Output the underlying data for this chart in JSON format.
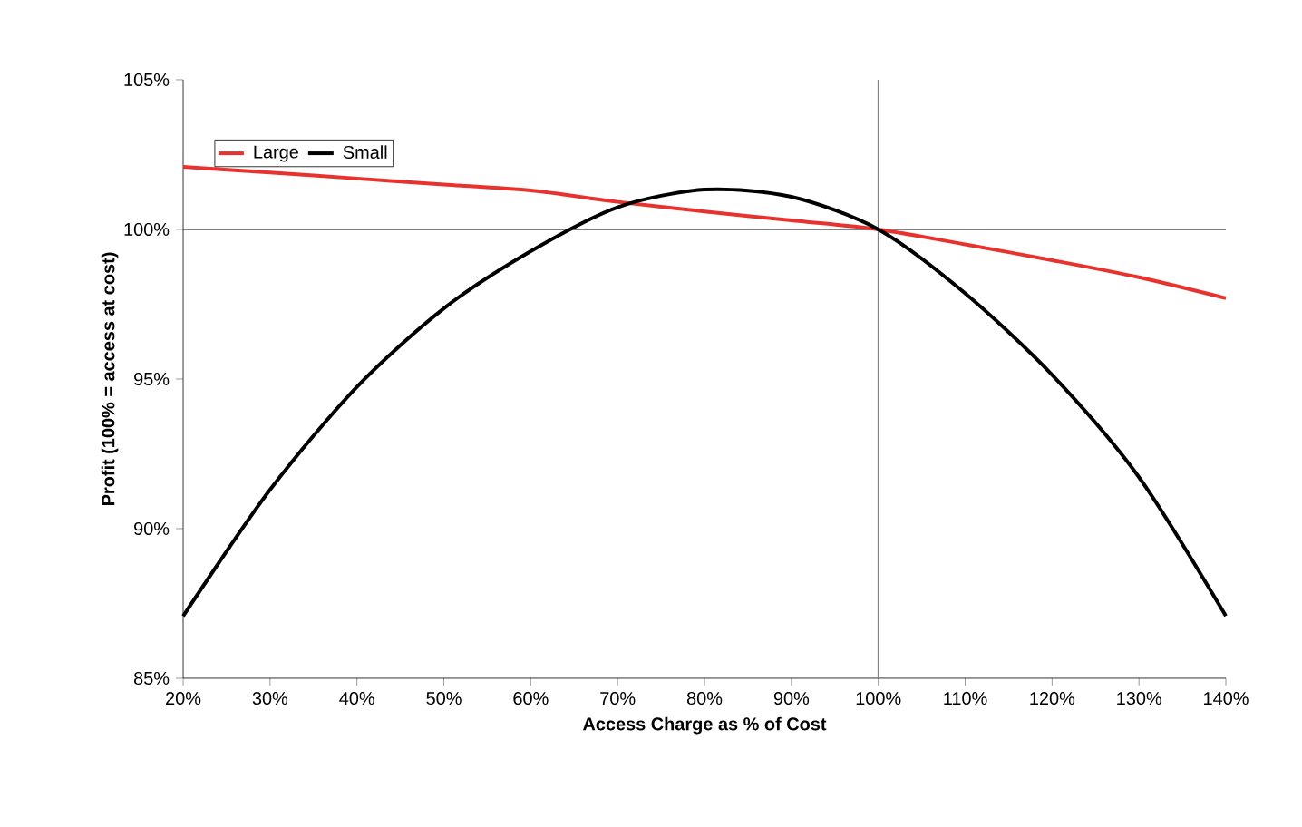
{
  "chart_data": {
    "type": "line",
    "xlabel": "Access Charge as % of Cost",
    "ylabel": "Profit (100% = access at cost)",
    "x": [
      20,
      30,
      40,
      50,
      60,
      70,
      80,
      90,
      100,
      110,
      120,
      130,
      140
    ],
    "series": [
      {
        "name": "Large",
        "color": "#e8322d",
        "values": [
          102.09,
          101.9,
          101.7,
          101.5,
          101.3,
          100.92,
          100.6,
          100.3,
          100,
          99.5,
          98.97,
          98.4,
          97.7
        ]
      },
      {
        "name": "Small",
        "color": "#000000",
        "values": [
          87.08,
          91.3,
          94.74,
          97.36,
          99.27,
          100.74,
          101.33,
          101.09,
          100,
          97.86,
          95.14,
          91.72,
          87.08
        ]
      }
    ],
    "xlim": [
      20,
      140
    ],
    "ylim": [
      85,
      105
    ],
    "xticks": [
      {
        "value": 20,
        "label": "20%"
      },
      {
        "value": 30,
        "label": "30%"
      },
      {
        "value": 40,
        "label": "40%"
      },
      {
        "value": 50,
        "label": "50%"
      },
      {
        "value": 60,
        "label": "60%"
      },
      {
        "value": 70,
        "label": "70%"
      },
      {
        "value": 80,
        "label": "80%"
      },
      {
        "value": 90,
        "label": "90%"
      },
      {
        "value": 100,
        "label": "100%"
      },
      {
        "value": 110,
        "label": "110%"
      },
      {
        "value": 120,
        "label": "120%"
      },
      {
        "value": 130,
        "label": "130%"
      },
      {
        "value": 140,
        "label": "140%"
      }
    ],
    "yticks": [
      {
        "value": 85,
        "label": "85%"
      },
      {
        "value": 90,
        "label": "90%"
      },
      {
        "value": 95,
        "label": "95%"
      },
      {
        "value": 100,
        "label": "100%"
      },
      {
        "value": 105,
        "label": "105%"
      }
    ],
    "ref_lines": [
      {
        "axis": "y",
        "value": 100,
        "color": "#000000"
      },
      {
        "axis": "x",
        "value": 100,
        "color": "#808080"
      }
    ],
    "legend": "top left",
    "grid": false,
    "marker": "none",
    "line_style": "solid"
  }
}
